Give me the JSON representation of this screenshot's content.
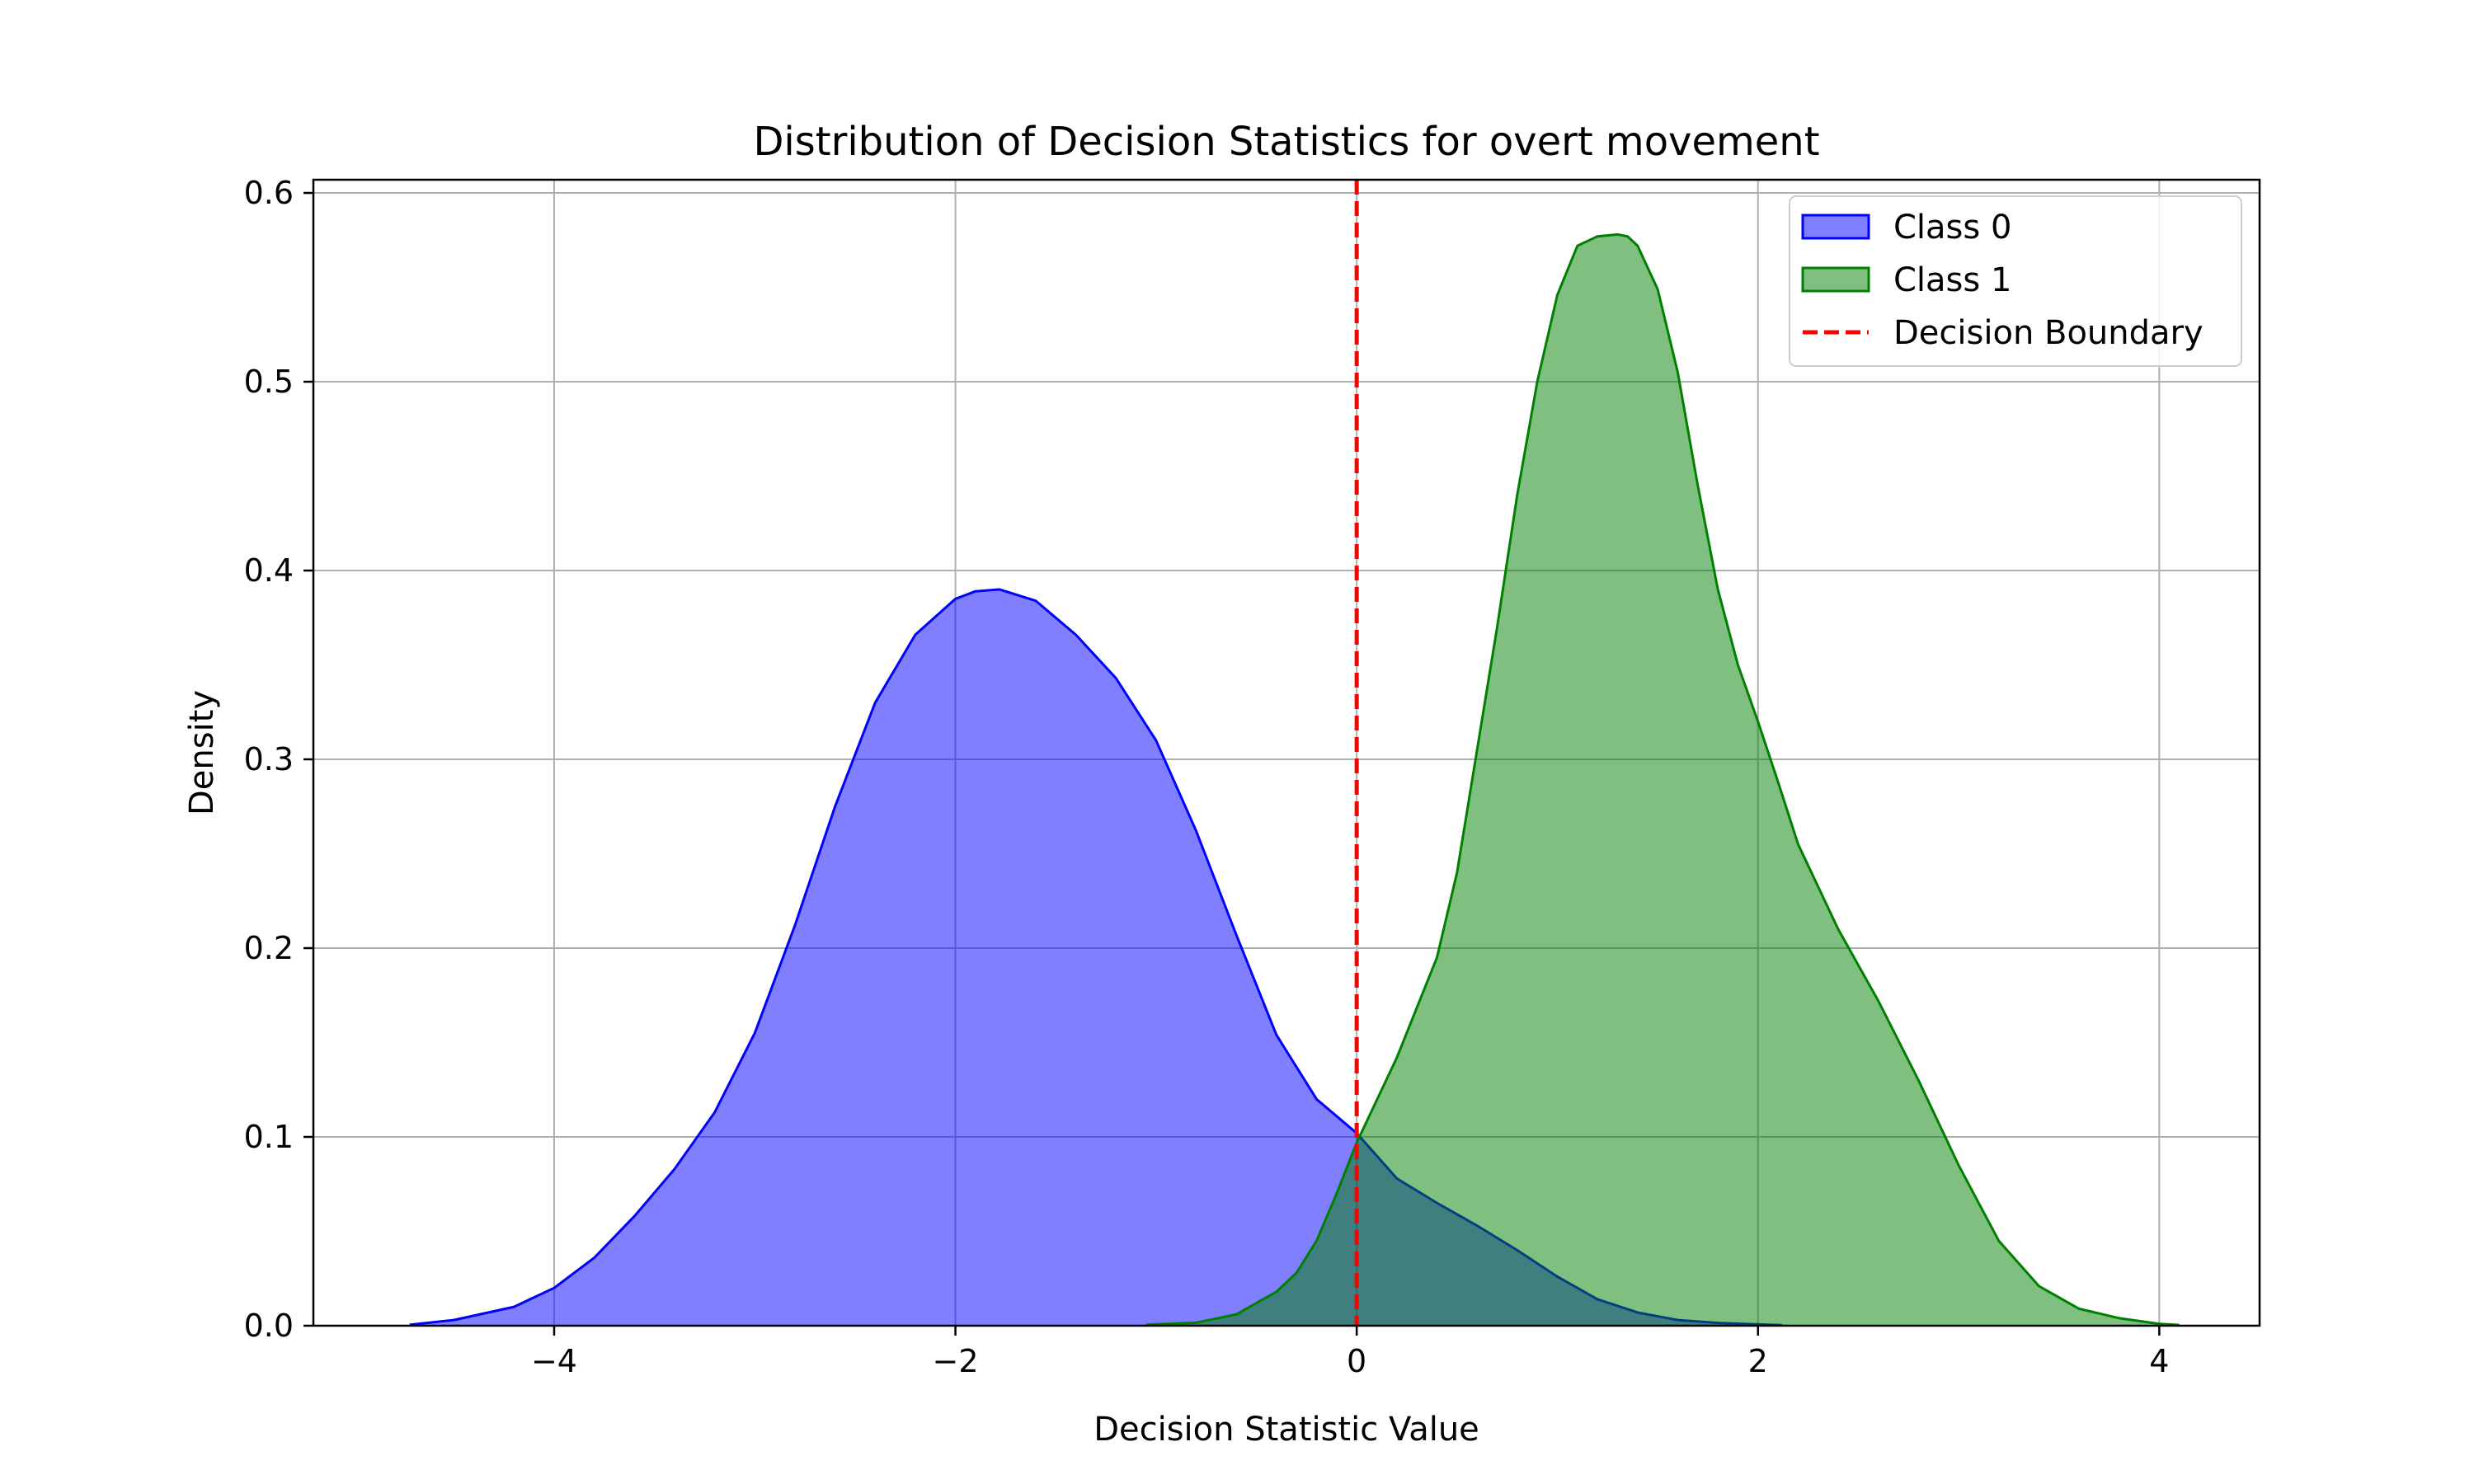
{
  "chart_data": {
    "type": "area",
    "title": "Distribution of Decision Statistics for overt movement",
    "xlabel": "Decision Statistic Value",
    "ylabel": "Density",
    "xlim": [
      -5.2,
      4.5
    ],
    "ylim": [
      0,
      0.607
    ],
    "x_ticks": [
      -4,
      -2,
      0,
      2,
      4
    ],
    "x_tick_labels": [
      "−4",
      "−2",
      "0",
      "2",
      "4"
    ],
    "y_ticks": [
      0.0,
      0.1,
      0.2,
      0.3,
      0.4,
      0.5,
      0.6
    ],
    "y_tick_labels": [
      "0.0",
      "0.1",
      "0.2",
      "0.3",
      "0.4",
      "0.5",
      "0.6"
    ],
    "grid": true,
    "legend_position": "top-right",
    "decision_boundary": {
      "label": "Decision Boundary",
      "x": 0,
      "color": "#ff0000"
    },
    "series": [
      {
        "name": "Class 0",
        "color": "#0000ff",
        "x": [
          -4.72,
          -4.5,
          -4.2,
          -4.0,
          -3.8,
          -3.6,
          -3.4,
          -3.2,
          -3.0,
          -2.8,
          -2.6,
          -2.4,
          -2.2,
          -2.0,
          -1.9,
          -1.78,
          -1.6,
          -1.4,
          -1.2,
          -1.0,
          -0.8,
          -0.6,
          -0.4,
          -0.2,
          0.0,
          0.2,
          0.4,
          0.6,
          0.8,
          1.0,
          1.2,
          1.4,
          1.6,
          1.8,
          2.0,
          2.12
        ],
        "y": [
          0.0005,
          0.003,
          0.01,
          0.02,
          0.036,
          0.058,
          0.083,
          0.113,
          0.155,
          0.212,
          0.275,
          0.33,
          0.366,
          0.385,
          0.389,
          0.39,
          0.384,
          0.366,
          0.343,
          0.31,
          0.262,
          0.207,
          0.154,
          0.12,
          0.102,
          0.078,
          0.065,
          0.053,
          0.04,
          0.026,
          0.014,
          0.007,
          0.003,
          0.0015,
          0.0007,
          0.0003
        ]
      },
      {
        "name": "Class 1",
        "color": "#008000",
        "x": [
          -1.05,
          -0.8,
          -0.6,
          -0.4,
          -0.3,
          -0.2,
          -0.1,
          0.0,
          0.2,
          0.4,
          0.5,
          0.6,
          0.7,
          0.8,
          0.9,
          1.0,
          1.1,
          1.2,
          1.3,
          1.35,
          1.4,
          1.5,
          1.6,
          1.7,
          1.8,
          1.9,
          2.0,
          2.1,
          2.2,
          2.4,
          2.6,
          2.8,
          3.0,
          3.2,
          3.4,
          3.6,
          3.8,
          4.0,
          4.1
        ],
        "y": [
          0.0005,
          0.0016,
          0.006,
          0.018,
          0.028,
          0.045,
          0.07,
          0.097,
          0.142,
          0.195,
          0.24,
          0.305,
          0.37,
          0.44,
          0.5,
          0.546,
          0.572,
          0.577,
          0.578,
          0.577,
          0.572,
          0.549,
          0.505,
          0.445,
          0.39,
          0.35,
          0.32,
          0.288,
          0.255,
          0.21,
          0.172,
          0.13,
          0.085,
          0.045,
          0.021,
          0.009,
          0.004,
          0.001,
          0.0004
        ]
      }
    ]
  }
}
